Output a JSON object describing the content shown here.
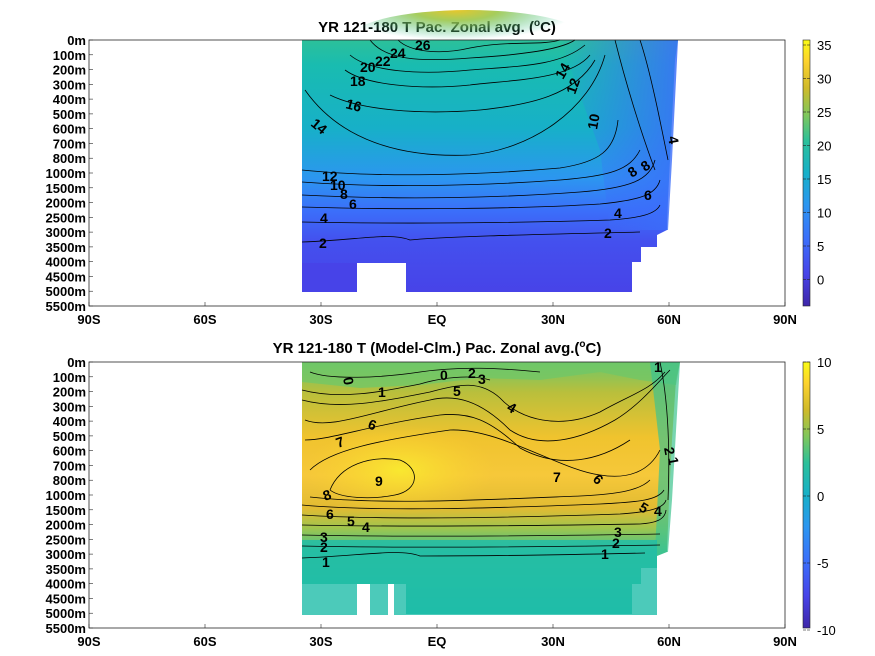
{
  "chart_data": [
    {
      "type": "heatmap",
      "title": "YR 121-180 T Pac. Zonal avg. (°C)",
      "title_parts": [
        "YR 121-180 T Pac. Zonal avg. (",
        "o",
        "C)"
      ],
      "x_ticks": [
        "90S",
        "60S",
        "30S",
        "EQ",
        "30N",
        "60N",
        "90N"
      ],
      "x_values": [
        -90,
        -60,
        -30,
        0,
        30,
        60,
        90
      ],
      "y_ticks": [
        "0m",
        "100m",
        "200m",
        "300m",
        "400m",
        "500m",
        "600m",
        "700m",
        "800m",
        "1000m",
        "1500m",
        "2000m",
        "2500m",
        "3000m",
        "3500m",
        "4000m",
        "4500m",
        "5000m",
        "5500m"
      ],
      "colorbar": {
        "ticks": [
          "35",
          "30",
          "25",
          "20",
          "15",
          "10",
          "5",
          "0"
        ],
        "range": [
          -3,
          36
        ]
      },
      "colormap": [
        "#3e26a8",
        "#4743e8",
        "#3b6efa",
        "#2c96f0",
        "#17b0c8",
        "#2cc09a",
        "#80c75b",
        "#d0ba2a",
        "#fcd22e",
        "#f9fb15"
      ],
      "contour_labels": [
        "26",
        "24",
        "22",
        "20",
        "18",
        "16",
        "14",
        "14",
        "12",
        "10",
        "12",
        "10",
        "8",
        "6",
        "4",
        "2",
        "8",
        "8",
        "6",
        "4",
        "2",
        "4"
      ],
      "data_extent": {
        "lat": [
          -35,
          62
        ],
        "max_depth_m": 5000
      }
    },
    {
      "type": "heatmap",
      "title": "YR 121-180 T (Model-Clm.) Pac. Zonal avg.(°C)",
      "title_parts": [
        "YR 121-180 T (Model-Clm.) Pac. Zonal avg.(",
        "o",
        "C)"
      ],
      "x_ticks": [
        "90S",
        "60S",
        "30S",
        "EQ",
        "30N",
        "60N",
        "90N"
      ],
      "x_values": [
        -90,
        -60,
        -30,
        0,
        30,
        60,
        90
      ],
      "y_ticks": [
        "0m",
        "100m",
        "200m",
        "300m",
        "400m",
        "500m",
        "600m",
        "700m",
        "800m",
        "1000m",
        "1500m",
        "2000m",
        "2500m",
        "3000m",
        "3500m",
        "4000m",
        "4500m",
        "5000m",
        "5500m"
      ],
      "colorbar": {
        "ticks": [
          "10",
          "5",
          "0",
          "-5",
          "-10"
        ],
        "range": [
          -10,
          10
        ]
      },
      "colormap": [
        "#3e26a8",
        "#4743e8",
        "#3b6efa",
        "#2c96f0",
        "#17b0c8",
        "#2cc09a",
        "#80c75b",
        "#d0ba2a",
        "#fcd22e",
        "#f9fb15"
      ],
      "contour_labels": [
        "0",
        "1",
        "0",
        "2",
        "3",
        "5",
        "4",
        "6",
        "7",
        "9",
        "8",
        "6",
        "5",
        "4",
        "7",
        "6",
        "5",
        "4",
        "3",
        "2",
        "1",
        "3",
        "2",
        "1",
        "2",
        "1",
        "1"
      ],
      "data_extent": {
        "lat": [
          -35,
          62
        ],
        "max_depth_m": 5000
      }
    }
  ]
}
